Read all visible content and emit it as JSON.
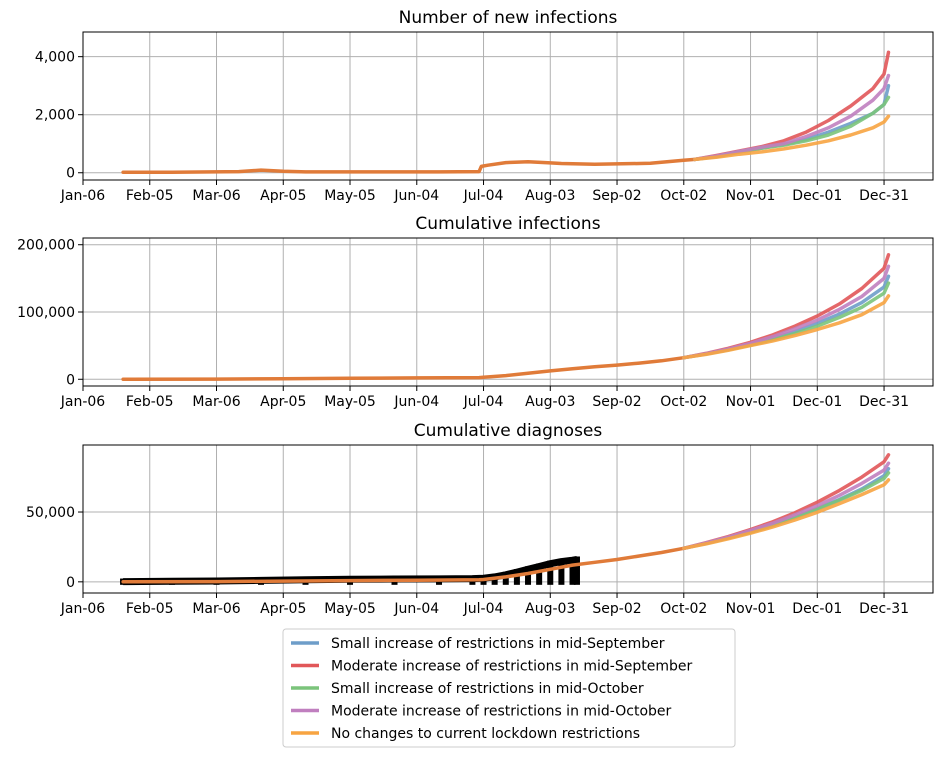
{
  "chart_data": [
    {
      "type": "line",
      "title": "Number of new infections",
      "xlabel": "",
      "ylabel": "",
      "x_tick_labels": [
        "Jan-06",
        "Feb-05",
        "Mar-06",
        "Apr-05",
        "May-05",
        "Jun-04",
        "Jul-04",
        "Aug-03",
        "Sep-02",
        "Oct-02",
        "Nov-01",
        "Dec-01",
        "Dec-31"
      ],
      "x_tick_days": [
        0,
        30,
        60,
        90,
        120,
        150,
        180,
        210,
        240,
        270,
        300,
        330,
        360
      ],
      "xlim": [
        0,
        382
      ],
      "y_tick_labels": [
        "0",
        "2,000",
        "4,000"
      ],
      "y_tick_values": [
        0,
        2000,
        4000
      ],
      "ylim": [
        -250,
        4850
      ],
      "grid": true,
      "base_x": [
        18,
        40,
        70,
        80,
        90,
        100,
        130,
        160,
        178,
        179,
        182,
        190,
        200,
        210,
        215,
        230,
        250,
        255,
        260,
        270,
        275
      ],
      "base_y": [
        20,
        20,
        40,
        90,
        50,
        30,
        30,
        30,
        40,
        220,
        260,
        350,
        380,
        340,
        320,
        290,
        320,
        330,
        360,
        430,
        460
      ],
      "series": [
        {
          "name": "Small increase of restrictions in mid-September",
          "color": "#6e9dc9",
          "x": [
            275,
            285,
            295,
            305,
            315,
            325,
            335,
            345,
            355,
            360,
            362
          ],
          "y": [
            460,
            560,
            720,
            850,
            980,
            1150,
            1400,
            1700,
            2050,
            2350,
            3000
          ]
        },
        {
          "name": "Moderate increase of restrictions in mid-September",
          "color": "#e15759",
          "x": [
            275,
            285,
            295,
            305,
            315,
            325,
            335,
            345,
            355,
            360,
            362
          ],
          "y": [
            460,
            600,
            750,
            900,
            1100,
            1400,
            1800,
            2300,
            2900,
            3400,
            4150
          ]
        },
        {
          "name": "Small increase of restrictions in mid-October",
          "color": "#7bc47b",
          "x": [
            275,
            285,
            295,
            305,
            315,
            325,
            335,
            345,
            355,
            360,
            362
          ],
          "y": [
            460,
            560,
            720,
            850,
            950,
            1100,
            1300,
            1600,
            2050,
            2350,
            2600
          ]
        },
        {
          "name": "Moderate increase of restrictions in mid-October",
          "color": "#c07fbf",
          "x": [
            275,
            285,
            295,
            305,
            315,
            325,
            335,
            345,
            355,
            360,
            362
          ],
          "y": [
            460,
            580,
            740,
            880,
            1000,
            1250,
            1550,
            1950,
            2500,
            2900,
            3350
          ]
        },
        {
          "name": "No changes to current lockdown restrictions",
          "color": "#f7a441",
          "x": [
            275,
            285,
            295,
            305,
            315,
            325,
            335,
            345,
            355,
            360,
            362
          ],
          "y": [
            460,
            540,
            640,
            720,
            820,
            950,
            1100,
            1300,
            1550,
            1750,
            1950
          ]
        }
      ]
    },
    {
      "type": "line",
      "title": "Cumulative infections",
      "xlabel": "",
      "ylabel": "",
      "x_tick_labels": [
        "Jan-06",
        "Feb-05",
        "Mar-06",
        "Apr-05",
        "May-05",
        "Jun-04",
        "Jul-04",
        "Aug-03",
        "Sep-02",
        "Oct-02",
        "Nov-01",
        "Dec-01",
        "Dec-31"
      ],
      "x_tick_days": [
        0,
        30,
        60,
        90,
        120,
        150,
        180,
        210,
        240,
        270,
        300,
        330,
        360
      ],
      "xlim": [
        0,
        382
      ],
      "y_tick_labels": [
        "0",
        "100,000",
        "200,000"
      ],
      "y_tick_values": [
        0,
        100000,
        200000
      ],
      "ylim": [
        -10000,
        210000
      ],
      "grid": true,
      "base_x": [
        18,
        60,
        90,
        120,
        150,
        178,
        180,
        190,
        200,
        210,
        220,
        230,
        240,
        250,
        260,
        270
      ],
      "base_y": [
        0,
        300,
        900,
        1500,
        2000,
        2500,
        3000,
        5500,
        9000,
        12500,
        15500,
        18500,
        21000,
        24000,
        27500,
        32000
      ],
      "series": [
        {
          "name": "Small increase of restrictions in mid-September",
          "color": "#6e9dc9",
          "x": [
            270,
            280,
            290,
            300,
            310,
            320,
            330,
            340,
            350,
            360,
            362
          ],
          "y": [
            32000,
            37500,
            44000,
            52000,
            61000,
            71000,
            83000,
            97000,
            114000,
            137000,
            153000
          ]
        },
        {
          "name": "Moderate increase of restrictions in mid-September",
          "color": "#e15759",
          "x": [
            270,
            280,
            290,
            300,
            310,
            320,
            330,
            340,
            350,
            360,
            362
          ],
          "y": [
            32000,
            38500,
            46000,
            55000,
            66000,
            79000,
            94000,
            112000,
            135000,
            165000,
            185000
          ]
        },
        {
          "name": "Small increase of restrictions in mid-October",
          "color": "#7bc47b",
          "x": [
            270,
            280,
            290,
            300,
            310,
            320,
            330,
            340,
            350,
            360,
            362
          ],
          "y": [
            32000,
            37500,
            44000,
            51000,
            59000,
            68000,
            79000,
            92000,
            107000,
            128000,
            143000
          ]
        },
        {
          "name": "Moderate increase of restrictions in mid-October",
          "color": "#c07fbf",
          "x": [
            270,
            280,
            290,
            300,
            310,
            320,
            330,
            340,
            350,
            360,
            362
          ],
          "y": [
            32000,
            38000,
            45000,
            53500,
            63500,
            75000,
            88000,
            104000,
            123000,
            150000,
            168000
          ]
        },
        {
          "name": "No changes to current lockdown restrictions",
          "color": "#f7a441",
          "x": [
            270,
            280,
            290,
            300,
            310,
            320,
            330,
            340,
            350,
            360,
            362
          ],
          "y": [
            32000,
            37000,
            43000,
            50000,
            57000,
            65000,
            74000,
            84000,
            96000,
            114000,
            124000
          ]
        }
      ]
    },
    {
      "type": "line",
      "title": "Cumulative diagnoses",
      "xlabel": "",
      "ylabel": "",
      "x_tick_labels": [
        "Jan-06",
        "Feb-05",
        "Mar-06",
        "Apr-05",
        "May-05",
        "Jun-04",
        "Jul-04",
        "Aug-03",
        "Sep-02",
        "Oct-02",
        "Nov-01",
        "Dec-01",
        "Dec-31"
      ],
      "x_tick_days": [
        0,
        30,
        60,
        90,
        120,
        150,
        180,
        210,
        240,
        270,
        300,
        330,
        360
      ],
      "xlim": [
        0,
        382
      ],
      "y_tick_labels": [
        "0",
        "50,000"
      ],
      "y_tick_values": [
        0,
        50000
      ],
      "ylim": [
        -8000,
        98000
      ],
      "grid": true,
      "observed_x": [
        18,
        40,
        60,
        80,
        100,
        120,
        140,
        160,
        175,
        180,
        185,
        190,
        195,
        200,
        205,
        210,
        215,
        220,
        222
      ],
      "observed_y": [
        200,
        400,
        600,
        1000,
        1500,
        1800,
        2000,
        2100,
        2300,
        2600,
        3500,
        5000,
        7000,
        9000,
        11000,
        13000,
        14500,
        15500,
        16000
      ],
      "base_x": [
        18,
        60,
        90,
        120,
        150,
        178,
        180,
        190,
        200,
        210,
        220,
        230,
        240,
        250,
        260,
        270
      ],
      "base_y": [
        0,
        200,
        500,
        900,
        1200,
        1500,
        1700,
        3500,
        6000,
        9000,
        12000,
        14000,
        16000,
        18500,
        21000,
        24000
      ],
      "series": [
        {
          "name": "Small increase of restrictions in mid-September",
          "color": "#6e9dc9",
          "x": [
            270,
            280,
            290,
            300,
            310,
            320,
            330,
            340,
            350,
            360,
            362
          ],
          "y": [
            24000,
            27500,
            31500,
            36000,
            41000,
            46500,
            52500,
            59000,
            66500,
            76000,
            81000
          ]
        },
        {
          "name": "Moderate increase of restrictions in mid-September",
          "color": "#e15759",
          "x": [
            270,
            280,
            290,
            300,
            310,
            320,
            330,
            340,
            350,
            360,
            362
          ],
          "y": [
            24000,
            28000,
            32500,
            37500,
            43000,
            49500,
            57000,
            65500,
            75000,
            86000,
            91000
          ]
        },
        {
          "name": "Small increase of restrictions in mid-October",
          "color": "#7bc47b",
          "x": [
            270,
            280,
            290,
            300,
            310,
            320,
            330,
            340,
            350,
            360,
            362
          ],
          "y": [
            24000,
            27500,
            31500,
            35500,
            40500,
            46000,
            52000,
            58500,
            65500,
            74000,
            78000
          ]
        },
        {
          "name": "Moderate increase of restrictions in mid-October",
          "color": "#c07fbf",
          "x": [
            270,
            280,
            290,
            300,
            310,
            320,
            330,
            340,
            350,
            360,
            362
          ],
          "y": [
            24000,
            27800,
            32000,
            36800,
            42000,
            48000,
            54500,
            62000,
            70500,
            80000,
            85000
          ]
        },
        {
          "name": "No changes to current lockdown restrictions",
          "color": "#f7a441",
          "x": [
            270,
            280,
            290,
            300,
            310,
            320,
            330,
            340,
            350,
            360,
            362
          ],
          "y": [
            24000,
            27200,
            30800,
            34800,
            39300,
            44300,
            49800,
            56000,
            62500,
            69500,
            73000
          ]
        }
      ]
    }
  ],
  "legend": {
    "placement": "bottom-center",
    "items": [
      {
        "label": "Small increase of restrictions in mid-September",
        "color": "#6e9dc9"
      },
      {
        "label": "Moderate increase of restrictions in mid-September",
        "color": "#e15759"
      },
      {
        "label": "Small increase of restrictions in mid-October",
        "color": "#7bc47b"
      },
      {
        "label": "Moderate increase of restrictions in mid-October",
        "color": "#c07fbf"
      },
      {
        "label": "No changes to current lockdown restrictions",
        "color": "#f7a441"
      }
    ]
  },
  "colors": {
    "base_line": "#e07b39",
    "observed": "#000000",
    "grid": "#b0b0b0",
    "axis": "#000000"
  }
}
